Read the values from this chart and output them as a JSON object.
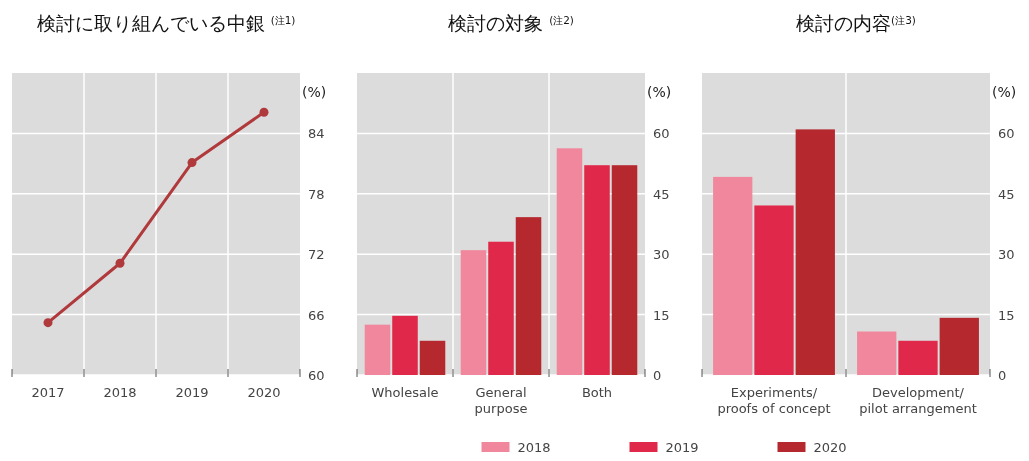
{
  "chart_data": [
    {
      "type": "line",
      "title": "検討に取り組んでいる中銀 $^{(注1)}$",
      "ylabel": "(%)",
      "categories": [
        "2017",
        "2018",
        "2019",
        "2020"
      ],
      "series": [
        {
          "color": "#b0393c",
          "values": [
            65.2,
            71.1,
            81.1,
            86.1
          ]
        }
      ],
      "ylim": [
        60,
        90
      ],
      "yticks": [
        60,
        66,
        72,
        78,
        84
      ],
      "grid": true,
      "marker": "circle"
    },
    {
      "type": "bar",
      "title": "検討の対象 $^{(注2)}$",
      "ylabel": "(%)",
      "categories": [
        "Wholesale",
        "General\npurpose",
        "Both"
      ],
      "series": [
        {
          "name": "2018",
          "color": "#f0879c",
          "values": [
            12.5,
            31,
            56.3
          ]
        },
        {
          "name": "2019",
          "color": "#e0284a",
          "values": [
            14.7,
            33.1,
            52.1
          ]
        },
        {
          "name": "2020",
          "color": "#b5282e",
          "values": [
            8.5,
            39.2,
            52.1
          ]
        }
      ],
      "ylim": [
        0,
        75
      ],
      "yticks": [
        0,
        15,
        30,
        45,
        60
      ],
      "grid": true,
      "legend": "bottom"
    },
    {
      "type": "bar",
      "title": "検討の内容$^{(注3)}$",
      "ylabel": "(%)",
      "categories": [
        "Experiments/\nproofs of concept",
        "Development/\npilot arrangement"
      ],
      "series": [
        {
          "name": "2018",
          "color": "#f0879c",
          "values": [
            49.2,
            10.8
          ]
        },
        {
          "name": "2019",
          "color": "#e0284a",
          "values": [
            42.1,
            8.5
          ]
        },
        {
          "name": "2020",
          "color": "#b5282e",
          "values": [
            61,
            14.2
          ]
        }
      ],
      "ylim": [
        0,
        75
      ],
      "yticks": [
        0,
        15,
        30,
        45,
        60
      ],
      "grid": true,
      "legend": "bottom"
    }
  ]
}
